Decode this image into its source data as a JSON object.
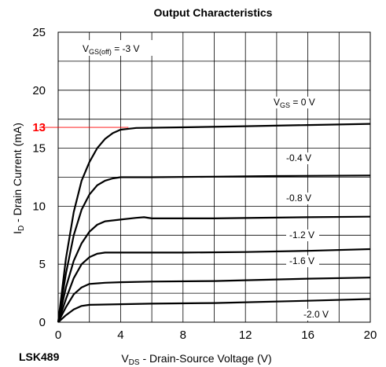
{
  "chart_data": {
    "type": "line",
    "title": "Output Characteristics",
    "xlabel": {
      "main": "V",
      "sub": "DS",
      "rest": " - Drain-Source Voltage (V)"
    },
    "ylabel": {
      "main": "I",
      "sub": "D",
      "rest": " - Drain Current (mA)"
    },
    "xlim": [
      0,
      20
    ],
    "ylim": [
      0,
      25
    ],
    "x_ticks": [
      "0",
      "4",
      "8",
      "12",
      "16",
      "20"
    ],
    "y_ticks": [
      "0",
      "5",
      "10",
      "15",
      "20",
      "25"
    ],
    "grid": true,
    "annotation_top": {
      "pre": "V",
      "sub": "GS(off)",
      "post": " = -3 V"
    },
    "highlight": {
      "label": "13",
      "y": 16.8,
      "x_end": 4.5,
      "color": "#ff0000"
    },
    "series": [
      {
        "label_pre": "V",
        "label_sub": "GS",
        "label_post": " = 0 V",
        "points": [
          [
            0,
            0
          ],
          [
            0.5,
            5.5
          ],
          [
            1,
            9.5
          ],
          [
            1.5,
            12.2
          ],
          [
            2,
            13.8
          ],
          [
            2.5,
            15
          ],
          [
            3,
            15.8
          ],
          [
            3.5,
            16.3
          ],
          [
            4,
            16.6
          ],
          [
            5,
            16.75
          ],
          [
            8,
            16.8
          ],
          [
            12,
            16.9
          ],
          [
            16,
            17
          ],
          [
            20,
            17.1
          ]
        ]
      },
      {
        "label": "-0.4 V",
        "points": [
          [
            0,
            0
          ],
          [
            0.5,
            4.2
          ],
          [
            1,
            7.5
          ],
          [
            1.5,
            9.7
          ],
          [
            2,
            11
          ],
          [
            2.5,
            11.8
          ],
          [
            3,
            12.2
          ],
          [
            3.5,
            12.4
          ],
          [
            4,
            12.5
          ],
          [
            6,
            12.5
          ],
          [
            10,
            12.55
          ],
          [
            14,
            12.6
          ],
          [
            20,
            12.65
          ]
        ]
      },
      {
        "label": "-0.8 V",
        "points": [
          [
            0,
            0
          ],
          [
            0.5,
            3
          ],
          [
            1,
            5.3
          ],
          [
            1.5,
            6.8
          ],
          [
            2,
            7.8
          ],
          [
            2.5,
            8.4
          ],
          [
            3,
            8.7
          ],
          [
            4,
            8.85
          ],
          [
            5,
            9
          ],
          [
            5.5,
            9.05
          ],
          [
            6,
            8.95
          ],
          [
            10,
            8.95
          ],
          [
            16,
            9.05
          ],
          [
            20,
            9.1
          ]
        ]
      },
      {
        "label": "-1.2 V",
        "points": [
          [
            0,
            0
          ],
          [
            0.5,
            2
          ],
          [
            1,
            3.8
          ],
          [
            1.5,
            5
          ],
          [
            2,
            5.6
          ],
          [
            2.5,
            5.9
          ],
          [
            3,
            6
          ],
          [
            5,
            6
          ],
          [
            8,
            6
          ],
          [
            12,
            6.05
          ],
          [
            16,
            6.15
          ],
          [
            20,
            6.3
          ]
        ]
      },
      {
        "label": "-1.6 V",
        "points": [
          [
            0,
            0
          ],
          [
            0.5,
            1.3
          ],
          [
            1,
            2.4
          ],
          [
            1.5,
            3
          ],
          [
            2,
            3.3
          ],
          [
            3,
            3.4
          ],
          [
            4,
            3.45
          ],
          [
            6,
            3.5
          ],
          [
            10,
            3.55
          ],
          [
            16,
            3.75
          ],
          [
            20,
            3.85
          ]
        ]
      },
      {
        "label": "-2.0 V",
        "points": [
          [
            0,
            0
          ],
          [
            0.5,
            0.6
          ],
          [
            1,
            1.1
          ],
          [
            1.5,
            1.4
          ],
          [
            2,
            1.5
          ],
          [
            4,
            1.55
          ],
          [
            6,
            1.6
          ],
          [
            10,
            1.65
          ],
          [
            16,
            1.85
          ],
          [
            20,
            2
          ]
        ]
      }
    ]
  },
  "part_number": "LSK489"
}
